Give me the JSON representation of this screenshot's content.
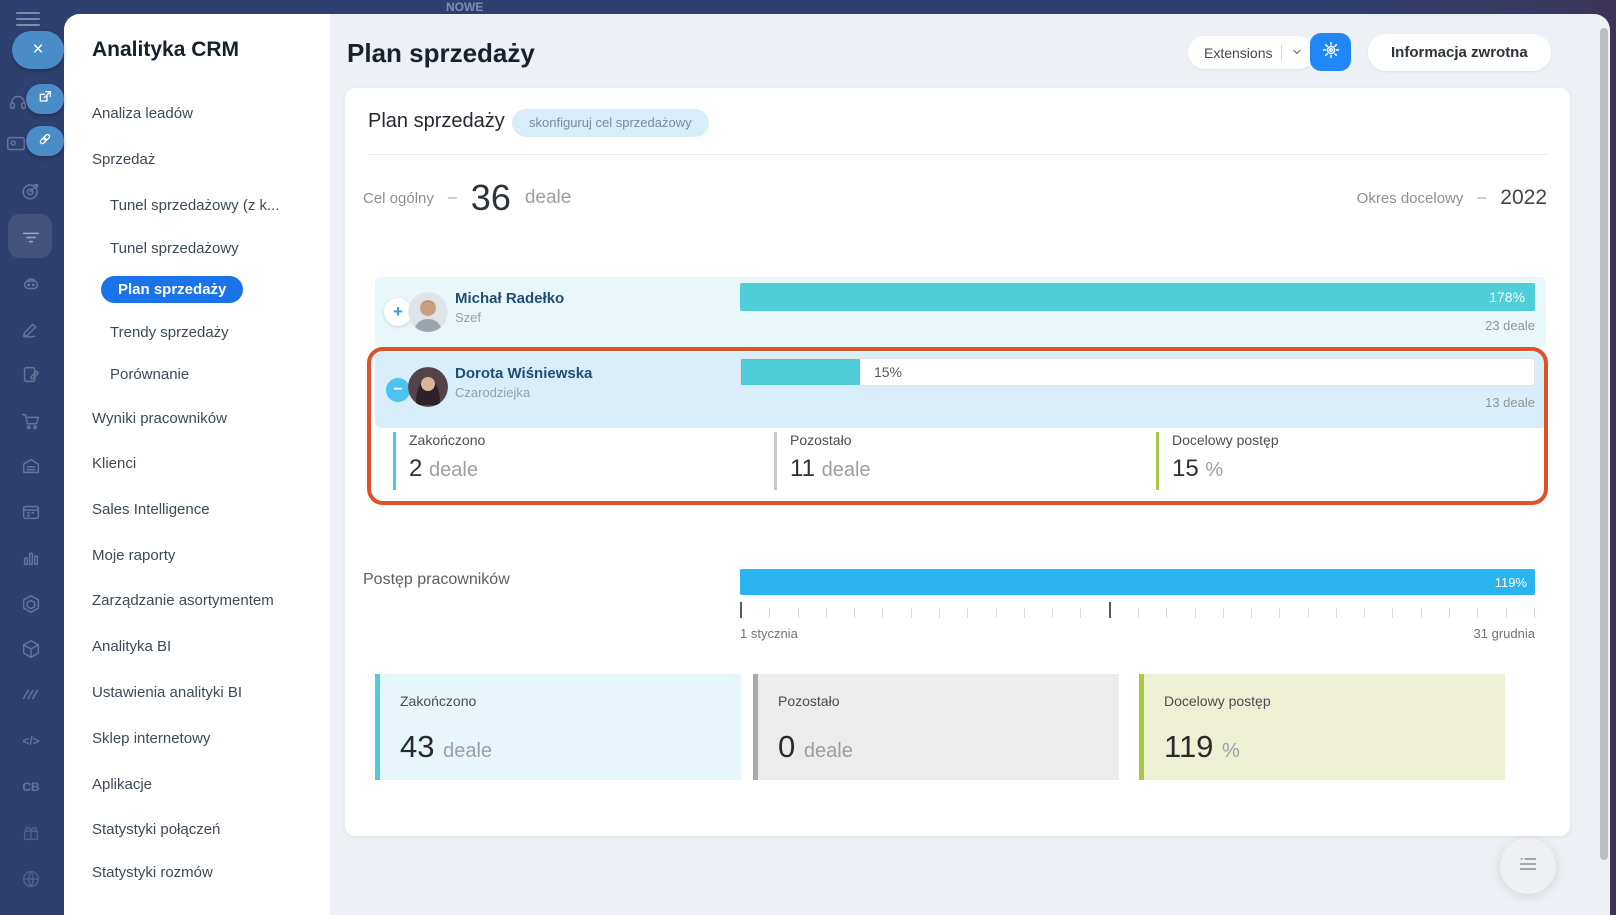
{
  "colors": {
    "accent_blue": "#1a73e8",
    "bright_blue": "#2ab4ef",
    "teal": "#4fced9",
    "lime_green": "#a6c844",
    "highlight_orange": "#df5228",
    "rail_navy": "#2e4070"
  },
  "glyphs": {
    "close": "×",
    "plus": "+",
    "minus": "−",
    "code": "</>",
    "cb": "CB"
  },
  "chrome": {
    "top_label": "NOWE"
  },
  "sidebar": {
    "title": "Analityka CRM",
    "items": [
      {
        "label": "Analiza leadów"
      },
      {
        "label": "Sprzedaż"
      },
      {
        "label": "Tunel sprzedażowy (z k..."
      },
      {
        "label": "Tunel sprzedażowy"
      },
      {
        "label": "Plan sprzedaży",
        "active": true
      },
      {
        "label": "Trendy sprzedaży"
      },
      {
        "label": "Porównanie"
      },
      {
        "label": "Wyniki pracowników"
      },
      {
        "label": "Klienci"
      },
      {
        "label": "Sales Intelligence"
      },
      {
        "label": "Moje raporty"
      },
      {
        "label": "Zarządzanie asortymentem"
      },
      {
        "label": "Analityka BI"
      },
      {
        "label": "Ustawienia analityki BI"
      },
      {
        "label": "Sklep internetowy"
      },
      {
        "label": "Aplikacje"
      },
      {
        "label": "Statystyki połączeń"
      },
      {
        "label": "Statystyki rozmów"
      }
    ]
  },
  "header": {
    "title": "Plan sprzedaży",
    "extensions_label": "Extensions",
    "feedback_label": "Informacja zwrotna"
  },
  "plan": {
    "title": "Plan sprzedaży",
    "badge": "skonfiguruj cel sprzedażowy",
    "dash": "–",
    "goal_label": "Cel ogólny",
    "goal_value": "36",
    "goal_unit": "deale",
    "period_label": "Okres docelowy",
    "period_value": "2022",
    "employees": [
      {
        "name": "Michał Radełko",
        "role": "Szef",
        "progress_pct": 178,
        "progress_label": "178%",
        "deals": "23 deale"
      },
      {
        "name": "Dorota Wiśniewska",
        "role": "Czarodziejka",
        "progress_pct": 15,
        "progress_label": "15%",
        "deals": "13 deale",
        "stats": [
          {
            "label": "Zakończono",
            "value": "2",
            "unit": "deale"
          },
          {
            "label": "Pozostało",
            "value": "11",
            "unit": "deale"
          },
          {
            "label": "Docelowy postęp",
            "value": "15",
            "unit": "%"
          }
        ]
      }
    ],
    "team": {
      "label": "Postęp pracowników",
      "pct": 119,
      "pct_label": "119%",
      "start": "1 stycznia",
      "end": "31 grudnia"
    },
    "summary": [
      {
        "label": "Zakończono",
        "value": "43",
        "unit": "deale"
      },
      {
        "label": "Pozostało",
        "value": "0",
        "unit": "deale"
      },
      {
        "label": "Docelowy postęp",
        "value": "119",
        "unit": "%"
      }
    ]
  }
}
